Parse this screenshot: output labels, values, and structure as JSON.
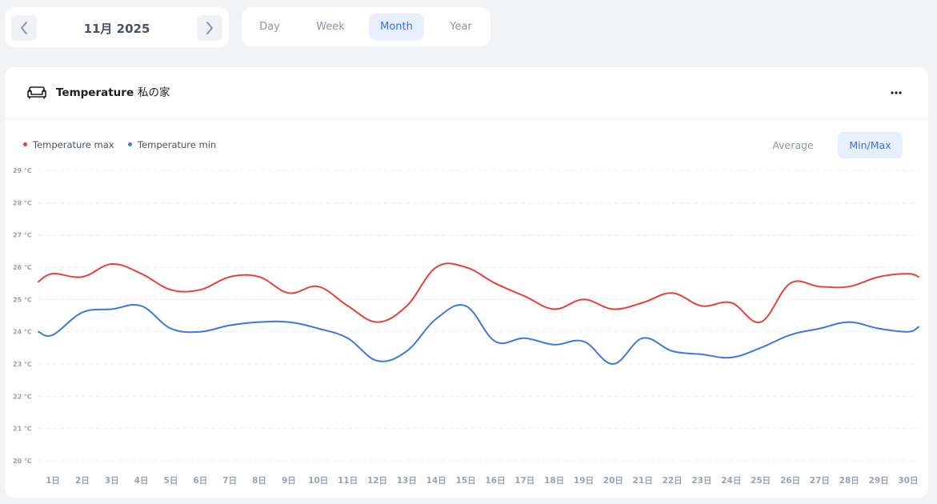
{
  "date_nav": {
    "label": "11月 2025",
    "prev_icon": "chevron-left-icon",
    "next_icon": "chevron-right-icon"
  },
  "period_tabs": [
    {
      "label": "Day",
      "active": false
    },
    {
      "label": "Week",
      "active": false
    },
    {
      "label": "Month",
      "active": true
    },
    {
      "label": "Year",
      "active": false
    }
  ],
  "card": {
    "icon": "sofa-icon",
    "title": "Temperature",
    "separator": "-",
    "location": "私の家",
    "more_icon": "more-horizontal-icon"
  },
  "legend": [
    {
      "label": "Temperature max",
      "color": "#e8413b"
    },
    {
      "label": "Temperature min",
      "color": "#3d78e0"
    }
  ],
  "view_modes": [
    {
      "label": "Average",
      "active": false
    },
    {
      "label": "Min/Max",
      "active": true
    }
  ],
  "colors": {
    "accent": "#3a6fe0",
    "max_line": "#e8413b",
    "min_line": "#3d78e0"
  },
  "chart_data": {
    "type": "line",
    "categories": [
      "1日",
      "2日",
      "3日",
      "4日",
      "5日",
      "6日",
      "7日",
      "8日",
      "9日",
      "10日",
      "11日",
      "12日",
      "13日",
      "14日",
      "15日",
      "16日",
      "17日",
      "18日",
      "19日",
      "20日",
      "21日",
      "22日",
      "23日",
      "24日",
      "25日",
      "26日",
      "27日",
      "28日",
      "29日",
      "30日"
    ],
    "series": [
      {
        "name": "Temperature max",
        "color": "#e8413b",
        "start": 25.55,
        "values": [
          25.8,
          25.7,
          26.1,
          25.8,
          25.3,
          25.3,
          25.7,
          25.7,
          25.2,
          25.4,
          24.8,
          24.3,
          24.8,
          26.0,
          26.0,
          25.5,
          25.1,
          24.7,
          25.0,
          24.7,
          24.9,
          25.2,
          24.8,
          24.9,
          24.3,
          25.5,
          25.4,
          25.4,
          25.7,
          25.8
        ],
        "end": 25.7
      },
      {
        "name": "Temperature min",
        "color": "#3d78e0",
        "start": 24.0,
        "values": [
          23.9,
          24.6,
          24.7,
          24.8,
          24.1,
          24.0,
          24.2,
          24.3,
          24.3,
          24.1,
          23.8,
          23.1,
          23.4,
          24.4,
          24.8,
          23.7,
          23.8,
          23.6,
          23.7,
          23.0,
          23.8,
          23.4,
          23.3,
          23.2,
          23.5,
          23.9,
          24.1,
          24.3,
          24.1,
          24.0
        ],
        "end": 24.15
      }
    ],
    "y_ticks": [
      "29 °C",
      "28 °C",
      "27 °C",
      "26 °C",
      "25 °C",
      "24 °C",
      "23 °C",
      "22 °C",
      "21 °C",
      "20 °C"
    ],
    "ylim": [
      20,
      29
    ],
    "grid": true,
    "legend_position": "top-left"
  }
}
